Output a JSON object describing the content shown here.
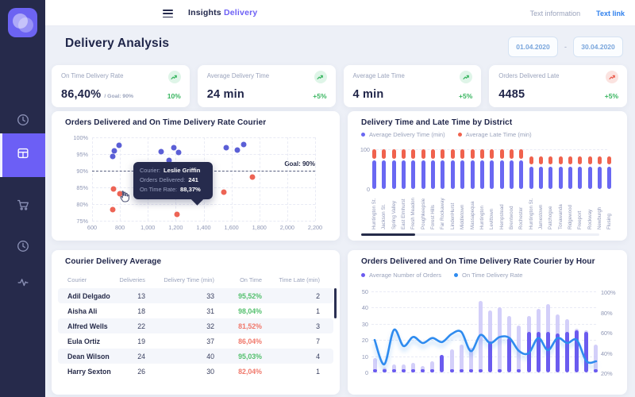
{
  "topbar": {
    "brand_primary": "Insights",
    "brand_accent": "Delivery",
    "text_information": "Text information",
    "text_link": "Text link"
  },
  "page": {
    "title": "Delivery Analysis",
    "date_from": "01.04.2020",
    "date_separator": "-",
    "date_to": "30.04.2020"
  },
  "sidebar": {
    "items": [
      {
        "icon": "clock-icon",
        "active": false
      },
      {
        "icon": "dashboard-icon",
        "active": true
      },
      {
        "icon": "cart-icon",
        "active": false
      },
      {
        "icon": "clock-icon",
        "active": false
      },
      {
        "icon": "activity-icon",
        "active": false
      }
    ]
  },
  "kpis": [
    {
      "label": "On Time Delivery Rate",
      "value": "86,40%",
      "suffix": "/ Goal: 90%",
      "delta": "10%",
      "trend": "up",
      "icon_color": "green"
    },
    {
      "label": "Average Delivery Time",
      "value": "24 min",
      "suffix": "",
      "delta": "+5%",
      "trend": "up",
      "icon_color": "green"
    },
    {
      "label": "Average Late Time",
      "value": "4 min",
      "suffix": "",
      "delta": "+5%",
      "trend": "up",
      "icon_color": "green"
    },
    {
      "label": "Orders Delivered Late",
      "value": "4485",
      "suffix": "",
      "delta": "+5%",
      "trend": "up",
      "icon_color": "red"
    }
  ],
  "colors": {
    "accent_purple": "#6C5FF5",
    "link_blue": "#2F80ED",
    "green": "#38B55F",
    "red": "#EA5B4B",
    "scatter_above": "#5B5FD6",
    "scatter_below": "#ED6455",
    "bar_delivery_blue": "#6A68F2",
    "bar_late_red": "#F0624D",
    "hour_bar_light": "#CBC7F8",
    "hour_bar_solid": "#6B5BEF",
    "line_blue": "#2E8BEF"
  },
  "table": {
    "title": "Courier Delivery Average",
    "columns": [
      "Courier",
      "Deliveries",
      "Delivery Time (min)",
      "On Time",
      "Time Late (min)"
    ],
    "rows": [
      {
        "courier": "Adil Delgado",
        "deliveries": "13",
        "delivery_time": "33",
        "on_time": "95,52%",
        "on_time_status": "good",
        "time_late": "2"
      },
      {
        "courier": "Aisha Ali",
        "deliveries": "18",
        "delivery_time": "31",
        "on_time": "98,04%",
        "on_time_status": "good",
        "time_late": "1"
      },
      {
        "courier": "Alfred Wells",
        "deliveries": "22",
        "delivery_time": "32",
        "on_time": "81,52%",
        "on_time_status": "bad",
        "time_late": "3"
      },
      {
        "courier": "Eula Ortiz",
        "deliveries": "19",
        "delivery_time": "37",
        "on_time": "86,04%",
        "on_time_status": "bad",
        "time_late": "7"
      },
      {
        "courier": "Dean Wilson",
        "deliveries": "24",
        "delivery_time": "40",
        "on_time": "95,03%",
        "on_time_status": "good",
        "time_late": "4"
      },
      {
        "courier": "Harry Sexton",
        "deliveries": "26",
        "delivery_time": "30",
        "on_time": "82,04%",
        "on_time_status": "bad",
        "time_late": "1"
      }
    ]
  },
  "chart_data": [
    {
      "id": "orders-ontime-scatter",
      "type": "scatter",
      "title": "Orders Delivered and On Time Delivery Rate Courier",
      "x_range": [
        600,
        2200
      ],
      "y_range": [
        75,
        100
      ],
      "x_ticks": [
        "600",
        "800",
        "1,000",
        "1,200",
        "1,400",
        "1,600",
        "1,800",
        "2,000",
        "2,200"
      ],
      "y_ticks": [
        "100%",
        "95%",
        "90%",
        "85%",
        "80%",
        "75%"
      ],
      "goal_label": "Goal: 90%",
      "goal_value": 90,
      "grid": true,
      "series": [
        {
          "name": "above-goal",
          "color": "#5B5FD6",
          "points": [
            [
              758,
              96.0
            ],
            [
              795,
              97.6
            ],
            [
              748,
              94.2
            ],
            [
              1095,
              95.7
            ],
            [
              1185,
              96.9
            ],
            [
              1218,
              95.5
            ],
            [
              1150,
              93.2
            ],
            [
              1560,
              97.0
            ],
            [
              1640,
              96.2
            ],
            [
              1685,
              97.9
            ]
          ]
        },
        {
          "name": "below-goal",
          "color": "#ED6455",
          "points": [
            [
              755,
              84.6
            ],
            [
              800,
              83.0
            ],
            [
              747,
              78.3
            ],
            [
              1150,
              82.3
            ],
            [
              1212,
              76.8
            ],
            [
              1545,
              83.6
            ],
            [
              1750,
              88.0
            ]
          ]
        }
      ],
      "tooltip": {
        "rows": [
          {
            "label": "Courier:",
            "value": "Leslie Griffin"
          },
          {
            "label": "Orders Delivered:",
            "value": "241"
          },
          {
            "label": "On Time Rate:",
            "value": "88,37%"
          }
        ]
      }
    },
    {
      "id": "district-stacked-bars",
      "type": "bar",
      "title": "Delivery Time and Late Time by District",
      "legend": [
        {
          "label": "Average Delivery Time (min)",
          "color": "#6A68F2"
        },
        {
          "label": "Average Late Time (min)",
          "color": "#F0624D"
        }
      ],
      "ylim": [
        0,
        100
      ],
      "y_ticks": [
        "100",
        "0"
      ],
      "segment_gap": 5,
      "categories": [
        "Huntington St.",
        "Jackson St.",
        "Spring Valley",
        "East Elmhurst",
        "Fresh Meadon",
        "Poughkeepsie",
        "Forest Hills",
        "Far Rockaway",
        "LindenHurst",
        "Middletown",
        "Massapequa",
        "Huntington",
        "Levittown",
        "Hempstead",
        "Brentwood",
        "Rochester",
        "Huntington St.",
        "Jamestown",
        "Patchogue",
        "Tonawanda",
        "Ridgewood",
        "Freeport",
        "Rockway",
        "Newburgh",
        "Flusing"
      ],
      "series": [
        {
          "name": "Average Delivery Time (min)",
          "values": [
            72,
            72,
            72,
            72,
            72,
            72,
            72,
            72,
            72,
            72,
            72,
            72,
            72,
            72,
            72,
            72,
            57,
            57,
            57,
            57,
            57,
            57,
            57,
            57,
            57
          ]
        },
        {
          "name": "Average Late Time (min)",
          "values": [
            23,
            23,
            23,
            23,
            23,
            23,
            23,
            23,
            23,
            23,
            23,
            23,
            23,
            23,
            23,
            23,
            20,
            20,
            20,
            20,
            20,
            20,
            20,
            20,
            20
          ]
        }
      ]
    },
    {
      "id": "orders-ontime-by-hour",
      "type": "bar+line",
      "title": "Orders Delivered and On Time Delivery Rate Courier by Hour",
      "legend": [
        {
          "label": "Average Number of Orders",
          "color": "#6B5BEF"
        },
        {
          "label": "On Time Delivery Rate",
          "color": "#2E8BEF"
        }
      ],
      "left_ylim": [
        0,
        50
      ],
      "left_ticks": [
        "50",
        "40",
        "30",
        "20",
        "10",
        "0"
      ],
      "right_ylim": [
        20,
        100
      ],
      "right_ticks": [
        "100%",
        "80%",
        "60%",
        "40%",
        "20%"
      ],
      "bars_total": [
        9,
        3,
        5,
        5,
        6,
        4,
        7,
        11,
        14,
        17,
        15,
        44,
        38,
        40,
        35,
        29,
        35,
        39,
        42,
        36,
        33,
        27,
        26,
        17
      ],
      "bars_solid": [
        2,
        2,
        2,
        2,
        2,
        2,
        2,
        11,
        2,
        2,
        2,
        2,
        19,
        2,
        21,
        2,
        25,
        25,
        25,
        24,
        25,
        26,
        25,
        2
      ],
      "line_rate_pct": [
        52,
        28,
        62,
        46,
        55,
        49,
        54,
        50,
        58,
        60,
        41,
        57,
        49,
        55,
        54,
        41,
        39,
        54,
        42,
        54,
        49,
        52,
        31,
        31
      ]
    }
  ]
}
